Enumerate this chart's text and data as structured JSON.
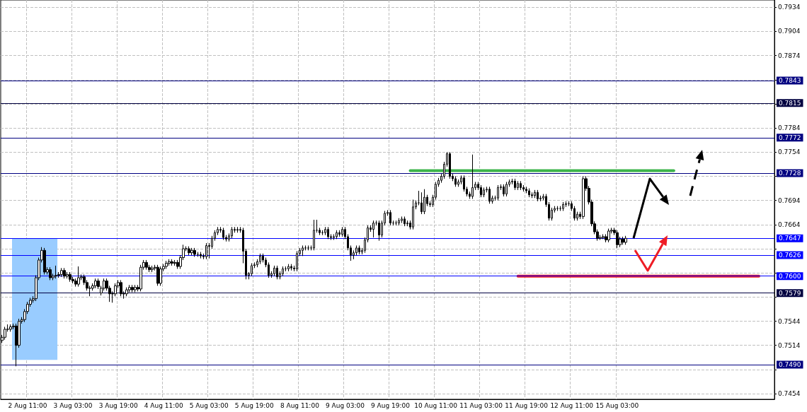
{
  "chart_data": {
    "type": "candlestick",
    "color": "#000000",
    "grid": true,
    "categories": [
      null,
      null,
      null,
      null,
      null,
      null,
      null,
      null,
      null,
      "2 Aug 11:00",
      null,
      null,
      null,
      null,
      null,
      null,
      null,
      null,
      null,
      null,
      null,
      null,
      null,
      null,
      null,
      "3 Aug 03:00",
      null,
      null,
      null,
      null,
      null,
      null,
      null,
      null,
      null,
      null,
      null,
      null,
      null,
      null,
      null,
      "3 Aug 19:00",
      null,
      null,
      null,
      null,
      null,
      null,
      null,
      null,
      null,
      null,
      null,
      null,
      null,
      null,
      null,
      "4 Aug 11:00",
      null,
      null,
      null,
      null,
      null,
      null,
      null,
      null,
      null,
      null,
      null,
      null,
      null,
      null,
      null,
      "5 Aug 03:00",
      null,
      null,
      null,
      null,
      null,
      null,
      null,
      null,
      null,
      null,
      null,
      null,
      null,
      null,
      null,
      "5 Aug 19:00",
      null,
      null,
      null,
      null,
      null,
      null,
      null,
      null,
      null,
      null,
      null,
      null,
      null,
      null,
      null,
      "8 Aug 11:00",
      null,
      null,
      null,
      null,
      null,
      null,
      null,
      null,
      null,
      null,
      null,
      null,
      null,
      null,
      null,
      "9 Aug 03:00",
      null,
      null,
      null,
      null,
      null,
      null,
      null,
      null,
      null,
      null,
      null,
      null,
      null,
      null,
      null,
      "9 Aug 19:00",
      null,
      null,
      null,
      null,
      null,
      null,
      null,
      null,
      null,
      null,
      null,
      null,
      null,
      null,
      null,
      "10 Aug 11:00",
      null,
      null,
      null,
      null,
      null,
      null,
      null,
      null,
      null,
      null,
      null,
      null,
      null,
      null,
      null,
      "11 Aug 03:00",
      null,
      null,
      null,
      null,
      null,
      null,
      null,
      null,
      null,
      null,
      null,
      null,
      null,
      null,
      null,
      "11 Aug 19:00",
      null,
      null,
      null,
      null,
      null,
      null,
      null,
      null,
      null,
      null,
      null,
      null,
      null,
      null,
      null,
      "12 Aug 11:00",
      null,
      null,
      null,
      null,
      null,
      null,
      null,
      null,
      null,
      null,
      null,
      null,
      null,
      null,
      null,
      "15 Aug 03:00",
      null,
      null,
      null,
      null,
      null,
      null,
      null,
      null,
      null,
      null,
      null,
      null,
      null,
      null,
      null,
      null,
      null,
      null,
      null,
      null,
      null,
      null,
      null,
      null,
      null,
      null,
      null,
      null,
      null,
      null,
      null,
      null,
      null,
      null,
      null,
      null,
      null,
      null,
      null,
      null,
      null,
      null,
      null,
      null,
      null,
      null,
      null,
      null,
      null,
      null,
      null,
      null,
      null,
      null,
      null
    ],
    "ohlc": [
      [
        0.752,
        0.7527,
        0.7517,
        0.7524
      ],
      [
        0.7524,
        0.7537,
        0.7521,
        0.7534
      ],
      [
        0.7534,
        0.754,
        0.7531,
        0.7534
      ],
      [
        0.7534,
        0.754,
        0.7531,
        0.7537
      ],
      [
        0.7537,
        0.7541,
        0.7534,
        0.7538
      ],
      [
        0.7538,
        0.7541,
        0.7488,
        0.7514
      ],
      [
        0.7514,
        0.7547,
        0.7511,
        0.7544
      ],
      [
        0.7544,
        0.7549,
        0.7541,
        0.7546
      ],
      [
        0.7546,
        0.7559,
        0.7543,
        0.7556
      ],
      [
        0.7556,
        0.7568,
        0.7553,
        0.7565
      ],
      [
        0.7565,
        0.7573,
        0.7562,
        0.757
      ],
      [
        0.757,
        0.7575,
        0.7567,
        0.7572
      ],
      [
        0.7572,
        0.7601,
        0.7569,
        0.7598
      ],
      [
        0.7598,
        0.7623,
        0.7595,
        0.762
      ],
      [
        0.762,
        0.7636,
        0.7617,
        0.7632
      ],
      [
        0.7632,
        0.7635,
        0.7602,
        0.7605
      ],
      [
        0.7605,
        0.7611,
        0.7602,
        0.7608
      ],
      [
        0.7608,
        0.7611,
        0.7595,
        0.7598
      ],
      [
        0.7598,
        0.7603,
        0.7595,
        0.76
      ],
      [
        0.76,
        0.7613,
        0.7597,
        0.7601
      ],
      [
        0.7601,
        0.7605,
        0.7598,
        0.7602
      ],
      [
        0.7602,
        0.761,
        0.7599,
        0.7607
      ],
      [
        0.7607,
        0.761,
        0.7597,
        0.76
      ],
      [
        0.76,
        0.7605,
        0.7597,
        0.7602
      ],
      [
        0.7602,
        0.7605,
        0.7593,
        0.7596
      ],
      [
        0.7596,
        0.7599,
        0.7591,
        0.7594
      ],
      [
        0.7594,
        0.7597,
        0.7587,
        0.759
      ],
      [
        0.759,
        0.7612,
        0.7587,
        0.7598
      ],
      [
        0.7598,
        0.7602,
        0.7595,
        0.7599
      ],
      [
        0.7599,
        0.7602,
        0.7589,
        0.7592
      ],
      [
        0.7592,
        0.7595,
        0.7582,
        0.7585
      ],
      [
        0.7585,
        0.7588,
        0.7575,
        0.7585
      ],
      [
        0.7585,
        0.7591,
        0.7582,
        0.7588
      ],
      [
        0.7588,
        0.7597,
        0.7585,
        0.7594
      ],
      [
        0.7594,
        0.7597,
        0.7584,
        0.7587
      ],
      [
        0.7579,
        0.7588,
        0.7576,
        0.7585
      ],
      [
        0.7585,
        0.7597,
        0.7582,
        0.7594
      ],
      [
        0.7594,
        0.7597,
        0.7582,
        0.7585
      ],
      [
        0.7585,
        0.7588,
        0.7568,
        0.7578
      ],
      [
        0.7578,
        0.7581,
        0.7567,
        0.7578
      ],
      [
        0.7578,
        0.7591,
        0.7575,
        0.7588
      ],
      [
        0.7588,
        0.7595,
        0.7585,
        0.7592
      ],
      [
        0.7592,
        0.7595,
        0.7575,
        0.7578
      ],
      [
        0.7578,
        0.7581,
        0.7572,
        0.7578
      ],
      [
        0.7578,
        0.7586,
        0.7575,
        0.7583
      ],
      [
        0.7583,
        0.7589,
        0.758,
        0.7586
      ],
      [
        0.7586,
        0.7589,
        0.758,
        0.7583
      ],
      [
        0.7583,
        0.7589,
        0.758,
        0.7586
      ],
      [
        0.7586,
        0.7589,
        0.7581,
        0.7584
      ],
      [
        0.7584,
        0.7614,
        0.7581,
        0.7611
      ],
      [
        0.7611,
        0.762,
        0.7608,
        0.7617
      ],
      [
        0.7617,
        0.762,
        0.7608,
        0.7611
      ],
      [
        0.7611,
        0.7614,
        0.7605,
        0.7608
      ],
      [
        0.7608,
        0.7613,
        0.7605,
        0.761
      ],
      [
        0.761,
        0.7614,
        0.7607,
        0.7611
      ],
      [
        0.7611,
        0.7614,
        0.7588,
        0.7591
      ],
      [
        0.7591,
        0.7612,
        0.7588,
        0.7609
      ],
      [
        0.7609,
        0.7615,
        0.7606,
        0.7612
      ],
      [
        0.7612,
        0.7619,
        0.7609,
        0.7616
      ],
      [
        0.7616,
        0.7621,
        0.7613,
        0.7618
      ],
      [
        0.7618,
        0.7621,
        0.7613,
        0.7616
      ],
      [
        0.7616,
        0.762,
        0.7613,
        0.7617
      ],
      [
        0.7617,
        0.762,
        0.7609,
        0.7612
      ],
      [
        0.7612,
        0.7626,
        0.7609,
        0.7623
      ],
      [
        0.7623,
        0.7639,
        0.762,
        0.7634
      ],
      [
        0.7634,
        0.7637,
        0.7631,
        0.7634
      ],
      [
        0.7634,
        0.7637,
        0.7626,
        0.7629
      ],
      [
        0.7629,
        0.7635,
        0.7626,
        0.7632
      ],
      [
        0.7632,
        0.7635,
        0.7624,
        0.7627
      ],
      [
        0.7627,
        0.763,
        0.7624,
        0.7627
      ],
      [
        0.7627,
        0.763,
        0.7622,
        0.7625
      ],
      [
        0.7625,
        0.7628,
        0.7621,
        0.7624
      ],
      [
        0.7624,
        0.7641,
        0.7621,
        0.7638
      ],
      [
        0.7638,
        0.7641,
        0.7622,
        0.7637
      ],
      [
        0.7637,
        0.765,
        0.7634,
        0.7647
      ],
      [
        0.7647,
        0.7657,
        0.7644,
        0.7654
      ],
      [
        0.7654,
        0.7661,
        0.7651,
        0.7658
      ],
      [
        0.7658,
        0.7661,
        0.7654,
        0.7657
      ],
      [
        0.7657,
        0.766,
        0.7645,
        0.7648
      ],
      [
        0.7648,
        0.7651,
        0.7643,
        0.7646
      ],
      [
        0.7646,
        0.7653,
        0.7643,
        0.765
      ],
      [
        0.765,
        0.7661,
        0.7647,
        0.7658
      ],
      [
        0.7658,
        0.7661,
        0.7654,
        0.7657
      ],
      [
        0.7657,
        0.7661,
        0.7654,
        0.7658
      ],
      [
        0.7658,
        0.7661,
        0.7654,
        0.7657
      ],
      [
        0.7657,
        0.766,
        0.7616,
        0.7631
      ],
      [
        0.7631,
        0.7634,
        0.7596,
        0.7601
      ],
      [
        0.7601,
        0.7605,
        0.7596,
        0.7603
      ],
      [
        0.7603,
        0.7616,
        0.76,
        0.7613
      ],
      [
        0.7613,
        0.7617,
        0.761,
        0.7614
      ],
      [
        0.7614,
        0.7621,
        0.7611,
        0.7618
      ],
      [
        0.7618,
        0.7628,
        0.7615,
        0.7625
      ],
      [
        0.7625,
        0.7628,
        0.7617,
        0.762
      ],
      [
        0.762,
        0.7623,
        0.7611,
        0.7614
      ],
      [
        0.7614,
        0.7617,
        0.7598,
        0.7601
      ],
      [
        0.7601,
        0.7606,
        0.7598,
        0.7603
      ],
      [
        0.7603,
        0.7613,
        0.76,
        0.761
      ],
      [
        0.761,
        0.7613,
        0.7596,
        0.7599
      ],
      [
        0.7599,
        0.7606,
        0.7596,
        0.7603
      ],
      [
        0.7603,
        0.7612,
        0.76,
        0.7609
      ],
      [
        0.7609,
        0.7612,
        0.7606,
        0.7609
      ],
      [
        0.7609,
        0.7615,
        0.7606,
        0.7612
      ],
      [
        0.7612,
        0.7615,
        0.7607,
        0.761
      ],
      [
        0.761,
        0.7613,
        0.7606,
        0.7609
      ],
      [
        0.7609,
        0.7631,
        0.7606,
        0.7628
      ],
      [
        0.7628,
        0.7635,
        0.7625,
        0.7632
      ],
      [
        0.7632,
        0.7638,
        0.7625,
        0.7635
      ],
      [
        0.7635,
        0.7638,
        0.7632,
        0.7635
      ],
      [
        0.7635,
        0.7638,
        0.7632,
        0.7635
      ],
      [
        0.7635,
        0.7638,
        0.7632,
        0.7635
      ],
      [
        0.7635,
        0.767,
        0.7632,
        0.7657
      ],
      [
        0.7657,
        0.767,
        0.7654,
        0.7657
      ],
      [
        0.7657,
        0.766,
        0.7651,
        0.7654
      ],
      [
        0.7654,
        0.7657,
        0.7651,
        0.7654
      ],
      [
        0.7654,
        0.7661,
        0.7651,
        0.7658
      ],
      [
        0.7658,
        0.7661,
        0.7646,
        0.7649
      ],
      [
        0.7649,
        0.7652,
        0.7645,
        0.7648
      ],
      [
        0.7648,
        0.7652,
        0.7645,
        0.7649
      ],
      [
        0.7649,
        0.7657,
        0.7646,
        0.7654
      ],
      [
        0.7654,
        0.7657,
        0.7649,
        0.7652
      ],
      [
        0.7652,
        0.7661,
        0.7649,
        0.7658
      ],
      [
        0.7658,
        0.7661,
        0.7646,
        0.7649
      ],
      [
        0.7649,
        0.7652,
        0.7632,
        0.7635
      ],
      [
        0.7635,
        0.7638,
        0.7619,
        0.7626
      ],
      [
        0.7626,
        0.7632,
        0.7621,
        0.7629
      ],
      [
        0.7629,
        0.7638,
        0.7626,
        0.7635
      ],
      [
        0.7635,
        0.7638,
        0.7627,
        0.763
      ],
      [
        0.763,
        0.7635,
        0.7627,
        0.7632
      ],
      [
        0.7632,
        0.7648,
        0.7629,
        0.7645
      ],
      [
        0.7645,
        0.7663,
        0.7642,
        0.766
      ],
      [
        0.766,
        0.7663,
        0.7655,
        0.7658
      ],
      [
        0.7658,
        0.7669,
        0.7648,
        0.7666
      ],
      [
        0.7666,
        0.7669,
        0.7663,
        0.7666
      ],
      [
        0.7666,
        0.7669,
        0.7644,
        0.7651
      ],
      [
        0.7651,
        0.7669,
        0.7648,
        0.7666
      ],
      [
        0.7666,
        0.7681,
        0.7663,
        0.7678
      ],
      [
        0.7678,
        0.7682,
        0.7675,
        0.7679
      ],
      [
        0.7679,
        0.7682,
        0.7663,
        0.7666
      ],
      [
        0.7666,
        0.7669,
        0.7663,
        0.7666
      ],
      [
        0.7666,
        0.7669,
        0.7663,
        0.7666
      ],
      [
        0.7666,
        0.7672,
        0.7663,
        0.7669
      ],
      [
        0.7669,
        0.7674,
        0.7666,
        0.7671
      ],
      [
        0.7671,
        0.7674,
        0.7662,
        0.7665
      ],
      [
        0.7665,
        0.7669,
        0.7662,
        0.7666
      ],
      [
        0.7666,
        0.7669,
        0.7658,
        0.7661
      ],
      [
        0.7661,
        0.7695,
        0.7658,
        0.7686
      ],
      [
        0.7686,
        0.7694,
        0.7683,
        0.7691
      ],
      [
        0.7691,
        0.7706,
        0.7688,
        0.7691
      ],
      [
        0.7691,
        0.7704,
        0.7677,
        0.768
      ],
      [
        0.768,
        0.7708,
        0.7677,
        0.7698
      ],
      [
        0.7698,
        0.7701,
        0.7687,
        0.769
      ],
      [
        0.769,
        0.7693,
        0.7686,
        0.7689
      ],
      [
        0.7689,
        0.7701,
        0.7686,
        0.7698
      ],
      [
        0.7698,
        0.7717,
        0.7695,
        0.7714
      ],
      [
        0.7714,
        0.7722,
        0.7711,
        0.7719
      ],
      [
        0.7719,
        0.7727,
        0.7716,
        0.7724
      ],
      [
        0.7724,
        0.7742,
        0.7721,
        0.7739
      ],
      [
        0.7739,
        0.7754,
        0.7736,
        0.7752
      ],
      [
        0.7752,
        0.7754,
        0.7721,
        0.7724
      ],
      [
        0.7724,
        0.7727,
        0.7718,
        0.7721
      ],
      [
        0.7721,
        0.7724,
        0.7711,
        0.7714
      ],
      [
        0.7714,
        0.772,
        0.7711,
        0.7717
      ],
      [
        0.7717,
        0.7725,
        0.7714,
        0.7722
      ],
      [
        0.7722,
        0.7725,
        0.7705,
        0.7708
      ],
      [
        0.7708,
        0.7711,
        0.7699,
        0.7702
      ],
      [
        0.7702,
        0.7705,
        0.7696,
        0.7699
      ],
      [
        0.7699,
        0.7751,
        0.7696,
        0.771
      ],
      [
        0.771,
        0.7717,
        0.7707,
        0.7714
      ],
      [
        0.7714,
        0.7717,
        0.7707,
        0.771
      ],
      [
        0.771,
        0.7713,
        0.7698,
        0.7701
      ],
      [
        0.7701,
        0.771,
        0.7698,
        0.7707
      ],
      [
        0.7707,
        0.7711,
        0.7704,
        0.7708
      ],
      [
        0.7708,
        0.7711,
        0.769,
        0.7693
      ],
      [
        0.7693,
        0.77,
        0.769,
        0.7697
      ],
      [
        0.7697,
        0.77,
        0.7694,
        0.7697
      ],
      [
        0.7697,
        0.7713,
        0.7694,
        0.771
      ],
      [
        0.771,
        0.7714,
        0.7707,
        0.7711
      ],
      [
        0.7711,
        0.7714,
        0.7699,
        0.7702
      ],
      [
        0.7702,
        0.7717,
        0.7699,
        0.7714
      ],
      [
        0.7714,
        0.772,
        0.7711,
        0.7717
      ],
      [
        0.7717,
        0.7721,
        0.7714,
        0.7718
      ],
      [
        0.7718,
        0.7721,
        0.7707,
        0.771
      ],
      [
        0.771,
        0.7718,
        0.7707,
        0.7715
      ],
      [
        0.7715,
        0.7718,
        0.7707,
        0.771
      ],
      [
        0.771,
        0.7713,
        0.7705,
        0.7708
      ],
      [
        0.7708,
        0.7711,
        0.7703,
        0.7706
      ],
      [
        0.7706,
        0.7709,
        0.7698,
        0.7701
      ],
      [
        0.7701,
        0.7704,
        0.7697,
        0.77
      ],
      [
        0.77,
        0.7707,
        0.7697,
        0.7704
      ],
      [
        0.7704,
        0.7707,
        0.7693,
        0.7696
      ],
      [
        0.7696,
        0.77,
        0.7693,
        0.7697
      ],
      [
        0.7697,
        0.7702,
        0.7694,
        0.7699
      ],
      [
        0.7699,
        0.7702,
        0.7686,
        0.7689
      ],
      [
        0.7689,
        0.7692,
        0.7669,
        0.7672
      ],
      [
        0.7672,
        0.7685,
        0.7669,
        0.7682
      ],
      [
        0.7682,
        0.7687,
        0.7679,
        0.7684
      ],
      [
        0.7684,
        0.7687,
        0.7681,
        0.7684
      ],
      [
        0.7684,
        0.7687,
        0.7681,
        0.7684
      ],
      [
        0.7684,
        0.7692,
        0.7681,
        0.7689
      ],
      [
        0.7689,
        0.7693,
        0.7686,
        0.769
      ],
      [
        0.769,
        0.7693,
        0.7687,
        0.769
      ],
      [
        0.769,
        0.7693,
        0.7681,
        0.7684
      ],
      [
        0.7684,
        0.7687,
        0.7669,
        0.7672
      ],
      [
        0.7672,
        0.768,
        0.7669,
        0.7677
      ],
      [
        0.7677,
        0.768,
        0.7671,
        0.7674
      ],
      [
        0.7674,
        0.7724,
        0.7671,
        0.7721
      ],
      [
        0.7721,
        0.7724,
        0.7706,
        0.7709
      ],
      [
        0.7709,
        0.7712,
        0.7689,
        0.7692
      ],
      [
        0.7692,
        0.7695,
        0.7662,
        0.7665
      ],
      [
        0.7665,
        0.7668,
        0.7652,
        0.7655
      ],
      [
        0.7655,
        0.7658,
        0.7644,
        0.7647
      ],
      [
        0.7647,
        0.7651,
        0.7645,
        0.7648
      ],
      [
        0.7648,
        0.7652,
        0.7646,
        0.7649
      ],
      [
        0.7649,
        0.7652,
        0.7642,
        0.7645
      ],
      [
        0.7645,
        0.7659,
        0.7642,
        0.7656
      ],
      [
        0.7656,
        0.766,
        0.7653,
        0.7657
      ],
      [
        0.7657,
        0.766,
        0.7651,
        0.7654
      ],
      [
        0.7654,
        0.7657,
        0.7635,
        0.7639
      ],
      [
        0.7639,
        0.7649,
        0.7636,
        0.7646
      ],
      [
        0.7646,
        0.7649,
        0.7639,
        0.7642
      ],
      [
        0.7642,
        0.765,
        0.7639,
        0.7647
      ],
      null,
      null,
      null,
      null,
      null,
      null,
      null,
      null,
      null,
      null,
      null,
      null,
      null,
      null,
      null,
      null,
      null,
      null,
      null,
      null,
      null,
      null,
      null,
      null,
      null,
      null,
      null,
      null,
      null,
      null,
      null,
      null,
      null,
      null,
      null,
      null,
      null,
      null,
      null,
      null,
      null,
      null,
      null,
      null,
      null,
      null,
      null,
      null,
      null,
      null,
      null,
      null
    ],
    "series": [
      {
        "type": "line",
        "color": "#3cb44b",
        "values": [
          null,
          null,
          null,
          null,
          null,
          null,
          null,
          null,
          null,
          null,
          null,
          null,
          null,
          null,
          null,
          null,
          null,
          null,
          null,
          null,
          null,
          null,
          null,
          null,
          null,
          null,
          null,
          null,
          null,
          null,
          null,
          null,
          null,
          null,
          null,
          null,
          null,
          null,
          null,
          null,
          null,
          null,
          null,
          null,
          null,
          null,
          null,
          null,
          null,
          null,
          null,
          null,
          null,
          null,
          null,
          null,
          null,
          null,
          null,
          null,
          null,
          null,
          null,
          null,
          null,
          null,
          null,
          null,
          null,
          null,
          null,
          null,
          null,
          null,
          null,
          null,
          null,
          null,
          null,
          null,
          null,
          null,
          null,
          null,
          null,
          null,
          null,
          null,
          null,
          null,
          null,
          null,
          null,
          null,
          null,
          null,
          null,
          null,
          null,
          null,
          null,
          null,
          null,
          null,
          null,
          null,
          null,
          null,
          null,
          null,
          null,
          null,
          null,
          null,
          null,
          null,
          null,
          null,
          null,
          null,
          null,
          null,
          null,
          null,
          null,
          null,
          null,
          null,
          null,
          null,
          null,
          null,
          null,
          null,
          null,
          null,
          null,
          null,
          null,
          null,
          null,
          null,
          null,
          null,
          0.7731,
          null,
          null,
          null,
          null,
          null,
          null,
          null,
          null,
          null,
          null,
          null,
          null,
          null,
          null,
          null,
          null,
          null,
          null,
          null,
          null,
          null,
          null,
          null,
          null,
          null,
          null,
          null,
          null,
          null,
          null,
          null,
          null,
          null,
          null,
          null,
          null,
          null,
          null,
          null,
          null,
          null,
          null,
          null,
          null,
          null,
          null,
          null,
          null,
          null,
          null,
          null,
          null,
          null,
          null,
          null,
          null,
          null,
          null,
          null,
          null,
          null,
          null,
          null,
          null,
          null,
          null,
          null,
          null,
          null,
          null,
          null,
          null,
          null,
          null,
          null,
          null,
          null,
          null,
          null,
          null,
          null,
          null,
          null,
          null,
          null,
          null,
          null,
          null,
          null,
          null,
          null,
          null,
          0.7731,
          null,
          null,
          null,
          null,
          null,
          null,
          null,
          null,
          null,
          null,
          null,
          null,
          null,
          null,
          null,
          null,
          null,
          null,
          null,
          null,
          null,
          null,
          null,
          null,
          null,
          null,
          null,
          null,
          null,
          null,
          null,
          null,
          null,
          null,
          null
        ]
      },
      {
        "type": "line",
        "color": "#ee1c25",
        "values": [
          null,
          null,
          null,
          null,
          null,
          null,
          null,
          null,
          null,
          null,
          null,
          null,
          null,
          null,
          null,
          null,
          null,
          null,
          null,
          null,
          null,
          null,
          null,
          null,
          null,
          null,
          null,
          null,
          null,
          null,
          null,
          null,
          null,
          null,
          null,
          null,
          null,
          null,
          null,
          null,
          null,
          null,
          null,
          null,
          null,
          null,
          null,
          null,
          null,
          null,
          null,
          null,
          null,
          null,
          null,
          null,
          null,
          null,
          null,
          null,
          null,
          null,
          null,
          null,
          null,
          null,
          null,
          null,
          null,
          null,
          null,
          null,
          null,
          null,
          null,
          null,
          null,
          null,
          null,
          null,
          null,
          null,
          null,
          null,
          null,
          null,
          null,
          null,
          null,
          null,
          null,
          null,
          null,
          null,
          null,
          null,
          null,
          null,
          null,
          null,
          null,
          null,
          null,
          null,
          null,
          null,
          null,
          null,
          null,
          null,
          null,
          null,
          null,
          null,
          null,
          null,
          null,
          null,
          null,
          null,
          null,
          null,
          null,
          null,
          null,
          null,
          null,
          null,
          null,
          null,
          null,
          null,
          null,
          null,
          null,
          null,
          null,
          null,
          null,
          null,
          null,
          null,
          null,
          null,
          null,
          null,
          null,
          null,
          null,
          null,
          null,
          null,
          null,
          null,
          null,
          null,
          null,
          null,
          null,
          null,
          null,
          null,
          null,
          null,
          null,
          null,
          null,
          null,
          null,
          null,
          null,
          null,
          null,
          null,
          null,
          null,
          null,
          null,
          null,
          null,
          null,
          null,
          0.76,
          null,
          null,
          null,
          null,
          null,
          null,
          null,
          null,
          null,
          null,
          null,
          null,
          null,
          null,
          null,
          null,
          null,
          null,
          null,
          null,
          null,
          null,
          null,
          null,
          null,
          null,
          null,
          null,
          null,
          null,
          null,
          null,
          null,
          null,
          null,
          null,
          null,
          null,
          null,
          null,
          null,
          null,
          null,
          null,
          null,
          null,
          null,
          null,
          null,
          null,
          null,
          null,
          null,
          null,
          null,
          null,
          null,
          null,
          null,
          null,
          null,
          null,
          null,
          null,
          null,
          null,
          null,
          null,
          null,
          null,
          null,
          null,
          null,
          null,
          null,
          null,
          null,
          null,
          null,
          null,
          null,
          null,
          null,
          null,
          0.76,
          null,
          null,
          null,
          null,
          null
        ]
      }
    ],
    "bands": [
      {
        "axis": "y",
        "from": 0.7496,
        "to": 0.7647,
        "color": "#99ccff"
      }
    ],
    "ylim": [
      0.7447,
      0.7943
    ],
    "yticks": [
      0.7454,
      {
        "value": 0.7484,
        "label": null
      },
      0.7514,
      0.7544,
      {
        "value": 0.7574,
        "label": null
      },
      {
        "value": 0.7604,
        "label": null
      },
      {
        "value": 0.7634,
        "label": null
      },
      0.7664,
      0.7694,
      {
        "value": 0.7724,
        "label": null
      },
      0.7754,
      0.7784,
      {
        "value": 0.7814,
        "label": null
      },
      {
        "value": 0.7844,
        "label": null
      },
      0.7874,
      0.7904,
      0.7934
    ],
    "ref_lines": [
      {
        "axis": "y",
        "value": 0.7843,
        "label": "0.7843",
        "color": "#000080"
      },
      {
        "axis": "y",
        "value": 0.7815,
        "label": "0.7815",
        "color": "#000040"
      },
      {
        "axis": "y",
        "value": 0.7772,
        "label": "0.7772",
        "color": "#000080"
      },
      {
        "axis": "y",
        "value": 0.7728,
        "label": "0.7728",
        "color": "#000080"
      },
      {
        "axis": "y",
        "value": 0.7647,
        "label": "0.7647",
        "color": "#0000ff"
      },
      {
        "axis": "y",
        "value": 0.7626,
        "label": "0.7626",
        "color": "#0000ff"
      },
      {
        "axis": "y",
        "value": 0.76,
        "label": "0.7600",
        "color": "#0000ff"
      },
      {
        "axis": "y",
        "value": 0.7579,
        "label": "0.7579",
        "color": "#000040"
      },
      {
        "axis": "y",
        "value": 0.749,
        "label": "0.7490",
        "color": "#000080"
      }
    ]
  }
}
